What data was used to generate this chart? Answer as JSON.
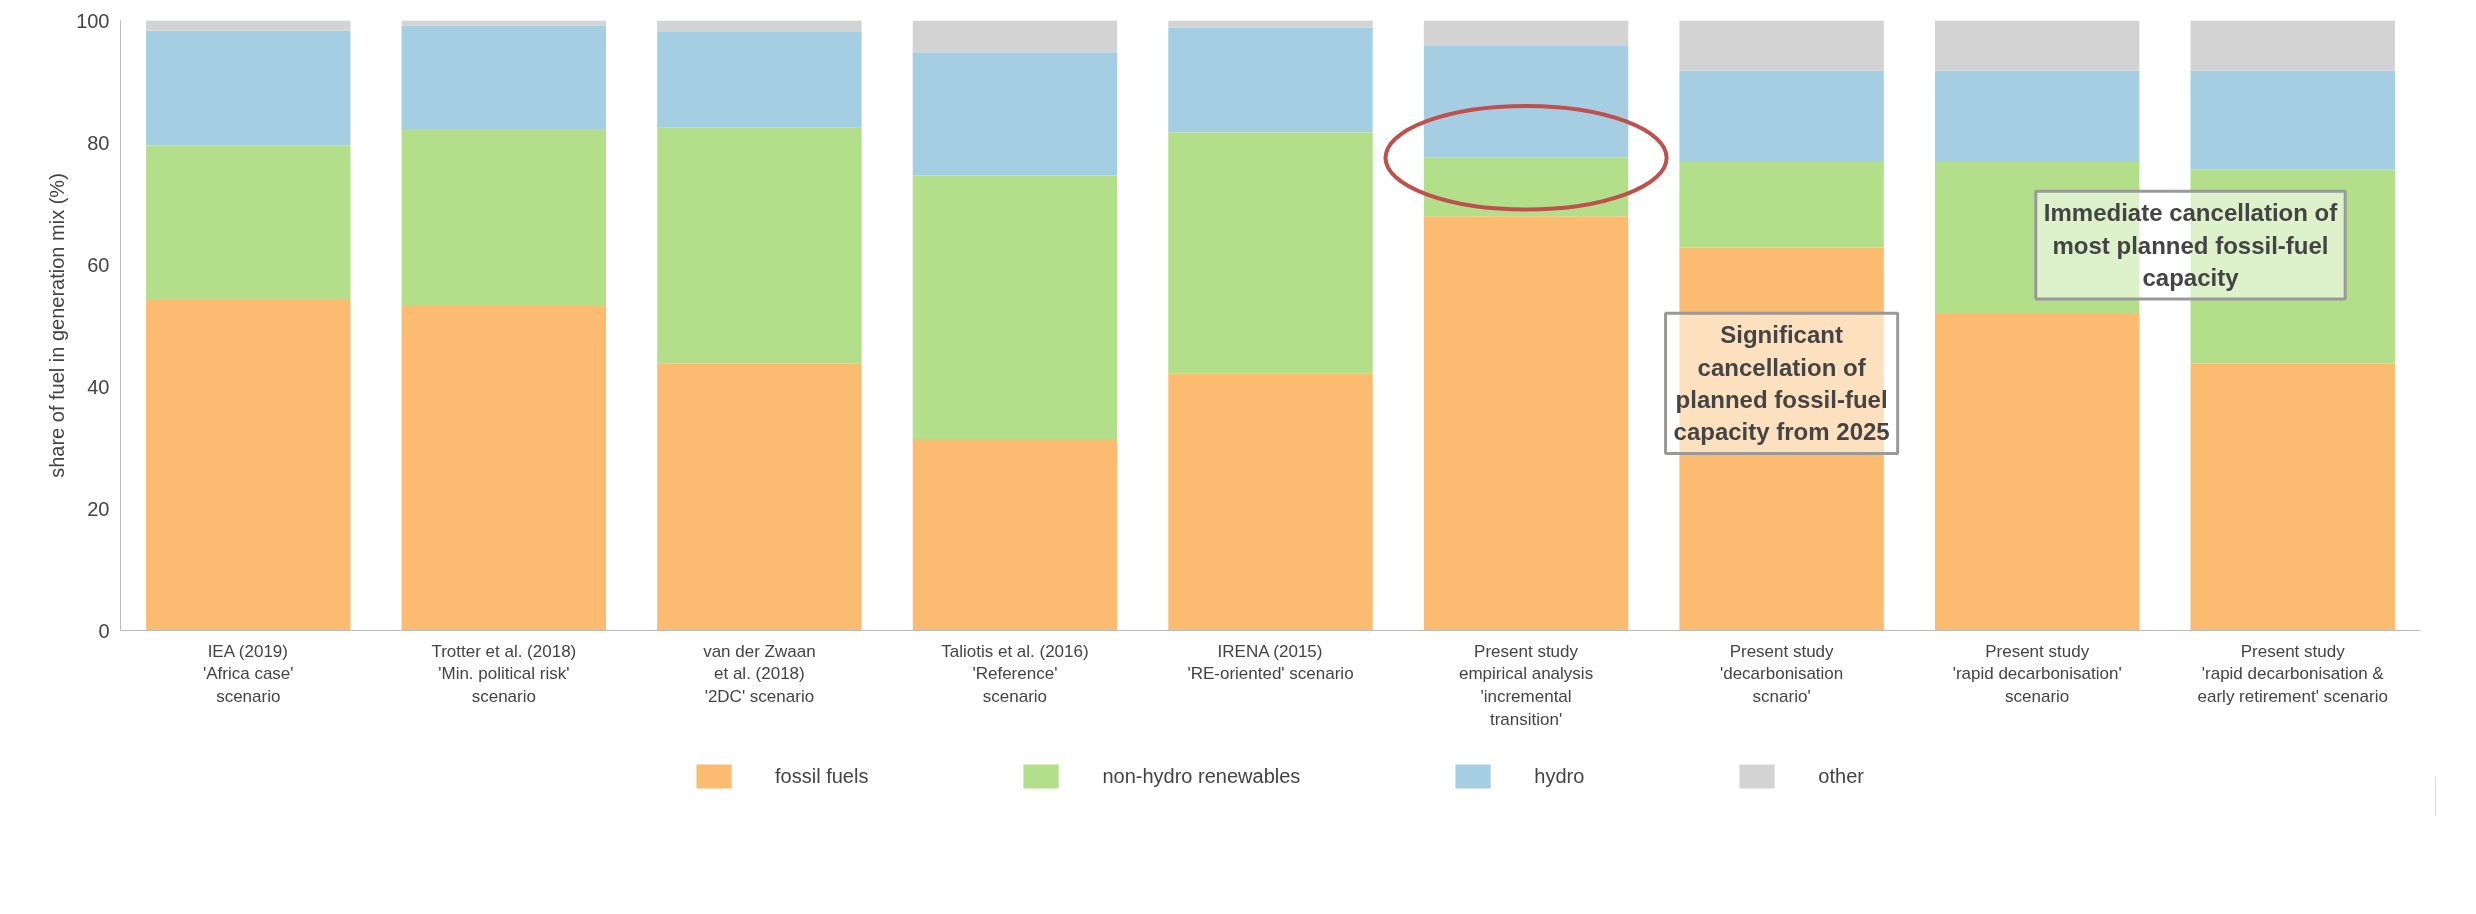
{
  "chart_data": {
    "type": "bar",
    "stacked": true,
    "ylabel": "share of fuel in generation mix (%)",
    "categories": [
      "IEA (2019)\n'Africa case'\nscenario",
      "Trotter et al. (2018)\n'Min. political risk'\nscenario",
      "van der Zwaan\net al. (2018)\n'2DC' scenario",
      "Taliotis et al. (2016)\n'Reference'\nscenario",
      "IRENA (2015)\n'RE-oriented' scenario",
      "Present study\nempirical analysis\n'incremental\ntransition'",
      "Present study\n'decarbonisation\nscnario'",
      "Present study\n'rapid decarbonisation'\nscenario",
      "Present study\n'rapid decarbonisation &\nearly retirement' scenario"
    ],
    "series": [
      {
        "name": "fossil fuels",
        "color": "#fbbc71",
        "values": [
          54.2,
          53.2,
          43.8,
          31.4,
          42.1,
          67.9,
          62.8,
          51.9,
          43.8
        ]
      },
      {
        "name": "non-hydro renewables",
        "color": "#b3df8a",
        "values": [
          25.3,
          29.0,
          38.6,
          43.2,
          39.6,
          9.6,
          14.0,
          24.9,
          31.8
        ]
      },
      {
        "name": "hydro",
        "color": "#a6cee3",
        "values": [
          18.8,
          17.0,
          15.7,
          20.2,
          17.1,
          18.3,
          15.0,
          15.0,
          16.2
        ]
      },
      {
        "name": "other",
        "color": "#d3d3d3",
        "values": [
          1.7,
          0.8,
          1.9,
          5.2,
          1.2,
          4.2,
          8.2,
          8.2,
          8.2
        ]
      }
    ],
    "ylim": [
      0,
      100
    ],
    "yticks": [
      0,
      20,
      40,
      60,
      80,
      100
    ],
    "grid": false,
    "legend": "bottom",
    "annotations": [
      "Significant\ncancellation of\nplanned fossil-fuel\ncapacity from 2025",
      "Immediate cancellation of\nmost planned fossil-fuel\ncapacity"
    ]
  }
}
